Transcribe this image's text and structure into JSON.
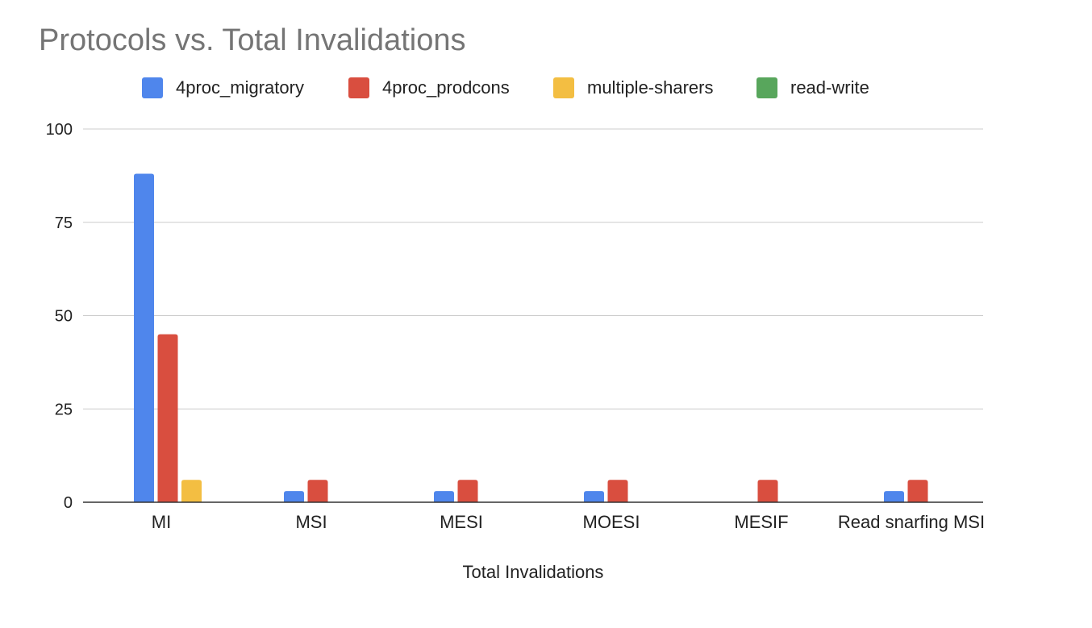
{
  "chart_data": {
    "type": "bar",
    "title": "Protocols vs. Total Invalidations",
    "xlabel": "Total Invalidations",
    "ylabel": "",
    "ylim": [
      0,
      100
    ],
    "yticks": [
      0,
      25,
      50,
      75,
      100
    ],
    "grid": true,
    "legend_position": "top",
    "categories": [
      "MI",
      "MSI",
      "MESI",
      "MOESI",
      "MESIF",
      "Read snarfing MSI"
    ],
    "series": [
      {
        "name": "4proc_migratory",
        "color": "#4f86ec",
        "values": [
          88,
          3,
          3,
          3,
          0,
          3
        ]
      },
      {
        "name": "4proc_prodcons",
        "color": "#d94e3f",
        "values": [
          45,
          6,
          6,
          6,
          6,
          6
        ]
      },
      {
        "name": "multiple-sharers",
        "color": "#f3be42",
        "values": [
          6,
          0,
          0,
          0,
          0,
          0
        ]
      },
      {
        "name": "read-write",
        "color": "#58a65c",
        "values": [
          0,
          0,
          0,
          0,
          0,
          0
        ]
      }
    ]
  }
}
